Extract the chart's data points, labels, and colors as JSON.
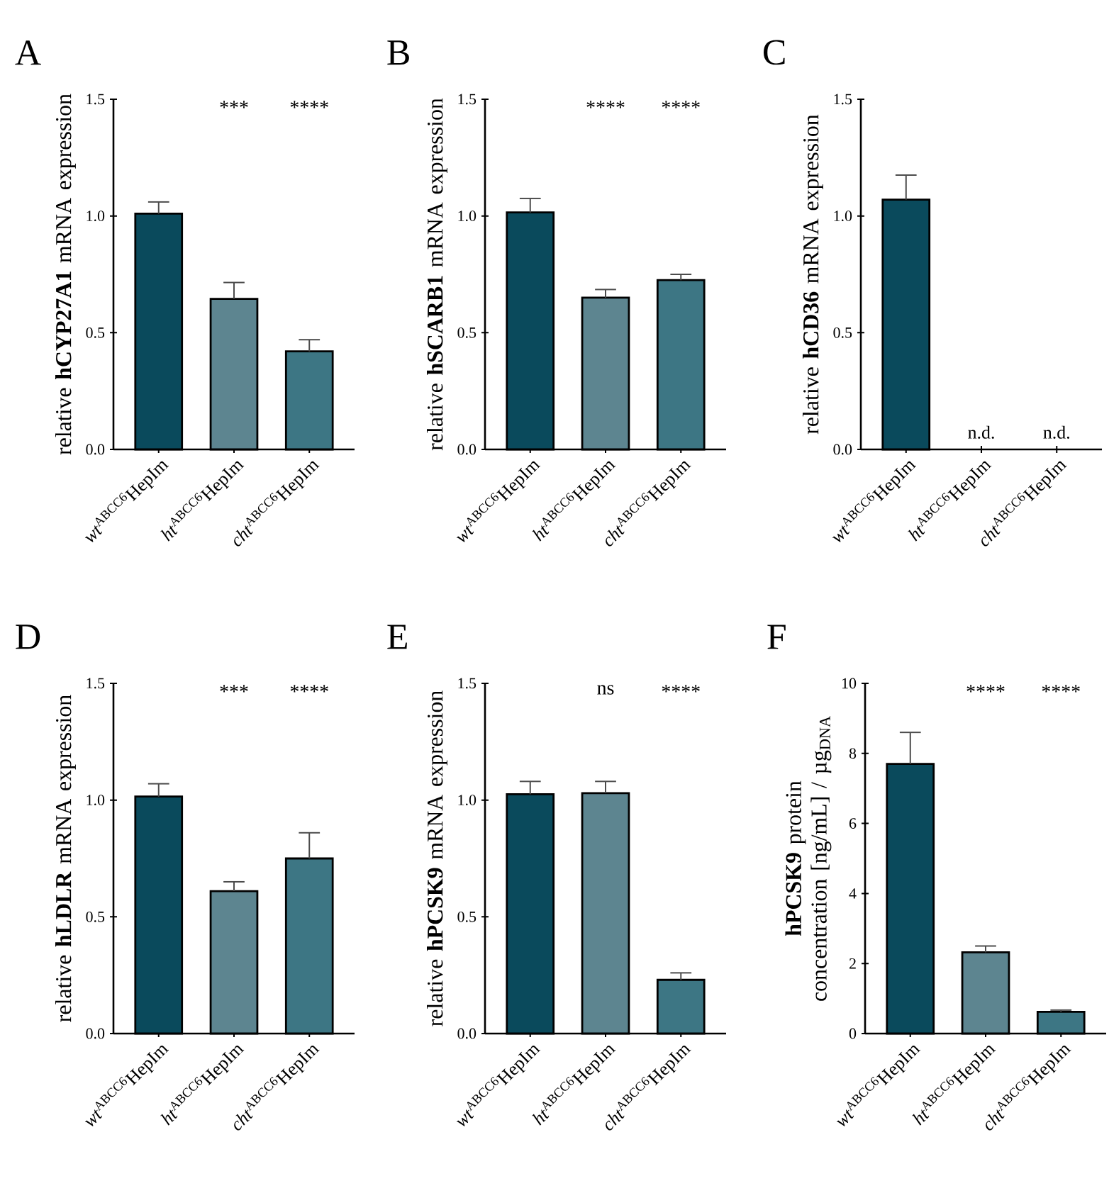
{
  "chart_data": [
    {
      "type": "bar",
      "title": "A",
      "ylabel": "relative **hCYP27A1** mRNA expression",
      "categories": [
        "*wt*$^{ABCC6}$HepIm",
        "*ht*$^{ABCC6}$HepIm",
        "*cht*$^{ABCC6}$HepIm"
      ],
      "values": [
        1.01,
        0.645,
        0.42
      ],
      "colors": [
        "#0a4a5c",
        "#5d8590",
        "#3d7684"
      ],
      "errors": [
        [
          1.01,
          1.06
        ],
        [
          0.645,
          0.715
        ],
        [
          0.42,
          0.47
        ]
      ],
      "ylim": [
        0,
        1.5
      ],
      "yticks": [
        {
          "value": 0,
          "label": "0.0"
        },
        {
          "value": 0.5,
          "label": "0.5"
        },
        {
          "value": 1.0,
          "label": "1.0"
        },
        {
          "value": 1.5,
          "label": "1.5"
        }
      ],
      "annotations": [
        "***",
        "****"
      ]
    },
    {
      "type": "bar",
      "title": "B",
      "ylabel": "relative **hSCARB1** mRNA expression",
      "categories": [
        "*wt*$^{ABCC6}$HepIm",
        "*ht*$^{ABCC6}$HepIm",
        "*cht*$^{ABCC6}$HepIm"
      ],
      "values": [
        1.015,
        0.65,
        0.725
      ],
      "colors": [
        "#0a4a5c",
        "#5d8590",
        "#3d7684"
      ],
      "errors": [
        [
          1.015,
          1.075
        ],
        [
          0.65,
          0.685
        ],
        [
          0.725,
          0.75
        ]
      ],
      "ylim": [
        0,
        1.5
      ],
      "yticks": [
        {
          "value": 0,
          "label": "0.0"
        },
        {
          "value": 0.5,
          "label": "0.5"
        },
        {
          "value": 1.0,
          "label": "1.0"
        },
        {
          "value": 1.5,
          "label": "1.5"
        }
      ],
      "annotations": [
        "****",
        "****"
      ]
    },
    {
      "type": "bar",
      "title": "C",
      "ylabel": "relative **hCD36** mRNA expression",
      "categories": [
        "*wt*$^{ABCC6}$HepIm",
        "*ht*$^{ABCC6}$HepIm",
        "*cht*$^{ABCC6}$HepIm"
      ],
      "values": [
        1.07,
        null,
        null
      ],
      "value_labels": [
        null,
        "n.d.",
        "n.d."
      ],
      "colors": [
        "#0a4a5c",
        "#5d8590",
        "#3d7684"
      ],
      "errors": [
        [
          1.07,
          1.175
        ],
        null,
        null
      ],
      "ylim": [
        0,
        1.5
      ],
      "yticks": [
        {
          "value": 0,
          "label": "0.0"
        },
        {
          "value": 0.5,
          "label": "0.5"
        },
        {
          "value": 1.0,
          "label": "1.0"
        },
        {
          "value": 1.5,
          "label": "1.5"
        }
      ]
    },
    {
      "type": "bar",
      "title": "D",
      "ylabel": "relative **hLDLR** mRNA expression",
      "categories": [
        "*wt*$^{ABCC6}$HepIm",
        "*ht*$^{ABCC6}$HepIm",
        "*cht*$^{ABCC6}$HepIm"
      ],
      "values": [
        1.015,
        0.61,
        0.75
      ],
      "colors": [
        "#0a4a5c",
        "#5d8590",
        "#3d7684"
      ],
      "errors": [
        [
          1.015,
          1.07
        ],
        [
          0.61,
          0.65
        ],
        [
          0.75,
          0.86
        ]
      ],
      "ylim": [
        0,
        1.5
      ],
      "yticks": [
        {
          "value": 0,
          "label": "0.0"
        },
        {
          "value": 0.5,
          "label": "0.5"
        },
        {
          "value": 1.0,
          "label": "1.0"
        },
        {
          "value": 1.5,
          "label": "1.5"
        }
      ],
      "annotations": [
        "***",
        "****"
      ]
    },
    {
      "type": "bar",
      "title": "E",
      "ylabel": "relative **hPCSK9** mRNA expression",
      "categories": [
        "*wt*$^{ABCC6}$HepIm",
        "*ht*$^{ABCC6}$HepIm",
        "*cht*$^{ABCC6}$HepIm"
      ],
      "values": [
        1.025,
        1.03,
        0.23
      ],
      "colors": [
        "#0a4a5c",
        "#5d8590",
        "#3d7684"
      ],
      "errors": [
        [
          1.025,
          1.08
        ],
        [
          1.03,
          1.08
        ],
        [
          0.23,
          0.26
        ]
      ],
      "ylim": [
        0,
        1.5
      ],
      "yticks": [
        {
          "value": 0,
          "label": "0.0"
        },
        {
          "value": 0.5,
          "label": "0.5"
        },
        {
          "value": 1.0,
          "label": "1.0"
        },
        {
          "value": 1.5,
          "label": "1.5"
        }
      ],
      "annotations": [
        "ns",
        "****"
      ]
    },
    {
      "type": "bar",
      "title": "F",
      "ylabel": "**hPCSK9** protein concentration [ng/mL] / µg$_{DNA}$",
      "categories": [
        "*wt*$^{ABCC6}$HepIm",
        "*ht*$^{ABCC6}$HepIm",
        "*cht*$^{ABCC6}$HepIm"
      ],
      "values": [
        7.7,
        2.32,
        0.62
      ],
      "colors": [
        "#0a4a5c",
        "#5d8590",
        "#3d7684"
      ],
      "errors": [
        [
          7.7,
          8.6
        ],
        [
          2.32,
          2.5
        ],
        [
          0.62,
          0.67
        ]
      ],
      "ylim": [
        0,
        10
      ],
      "yticks": [
        0,
        2,
        4,
        6,
        8,
        10
      ],
      "annotations": [
        "****",
        "****"
      ]
    }
  ]
}
